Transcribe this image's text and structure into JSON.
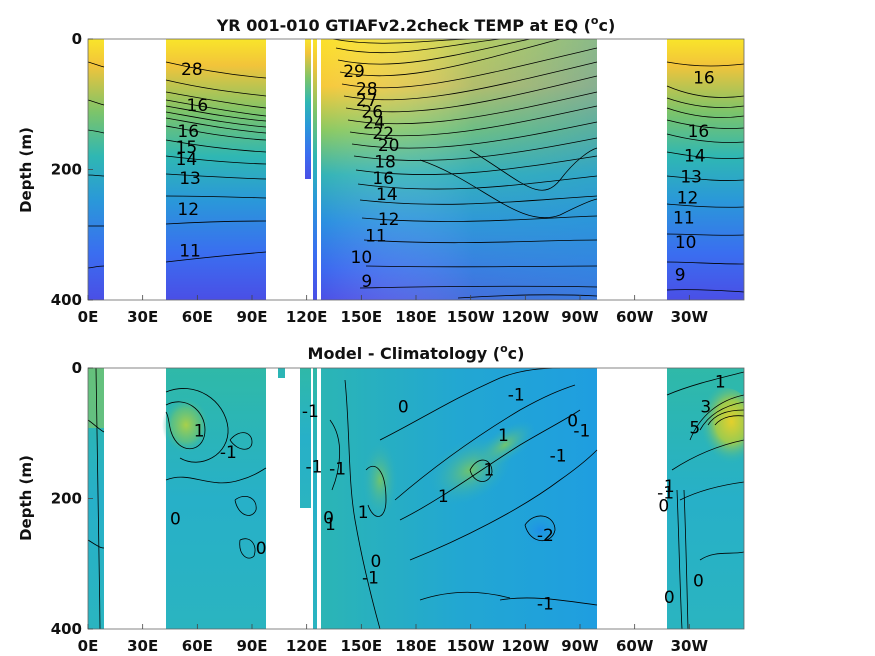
{
  "chart_data": [
    {
      "type": "heatmap",
      "title_main": "YR 001-010 GTIAFv2.2check TEMP at EQ (",
      "title_sup": "o",
      "title_end": "c)",
      "ylabel": "Depth (m)",
      "xlabel": "",
      "x_ticks": [
        "0E",
        "30E",
        "60E",
        "90E",
        "120E",
        "150E",
        "180E",
        "150W",
        "120W",
        "90W",
        "60W",
        "30W"
      ],
      "y_ticks": [
        "0",
        "200",
        "400"
      ],
      "ylim": [
        0,
        400
      ],
      "colormap": "parula",
      "crange": [
        8,
        30
      ],
      "land_gaps_lon": [
        [
          10,
          45
        ],
        [
          100,
          118
        ],
        [
          127,
          129
        ],
        [
          275,
          302
        ]
      ],
      "contour_labels": [
        {
          "text": "28",
          "lon": 57,
          "depth": 55
        },
        {
          "text": "16",
          "lon": 60,
          "depth": 110
        },
        {
          "text": "16",
          "lon": 55,
          "depth": 150
        },
        {
          "text": "15",
          "lon": 54,
          "depth": 175
        },
        {
          "text": "14",
          "lon": 54,
          "depth": 193
        },
        {
          "text": "13",
          "lon": 56,
          "depth": 222
        },
        {
          "text": "12",
          "lon": 55,
          "depth": 270
        },
        {
          "text": "11",
          "lon": 56,
          "depth": 333
        },
        {
          "text": "29",
          "lon": 146,
          "depth": 58
        },
        {
          "text": "28",
          "lon": 153,
          "depth": 85
        },
        {
          "text": "27",
          "lon": 153,
          "depth": 103
        },
        {
          "text": "26",
          "lon": 156,
          "depth": 120
        },
        {
          "text": "24",
          "lon": 157,
          "depth": 137
        },
        {
          "text": "22",
          "lon": 162,
          "depth": 153
        },
        {
          "text": "20",
          "lon": 165,
          "depth": 172
        },
        {
          "text": "18",
          "lon": 163,
          "depth": 197
        },
        {
          "text": "16",
          "lon": 162,
          "depth": 222
        },
        {
          "text": "14",
          "lon": 164,
          "depth": 247
        },
        {
          "text": "12",
          "lon": 165,
          "depth": 285
        },
        {
          "text": "11",
          "lon": 158,
          "depth": 310
        },
        {
          "text": "10",
          "lon": 150,
          "depth": 343
        },
        {
          "text": "9",
          "lon": 153,
          "depth": 380
        },
        {
          "text": "16",
          "lon": 338,
          "depth": 68
        },
        {
          "text": "16",
          "lon": 335,
          "depth": 150
        },
        {
          "text": "14",
          "lon": 333,
          "depth": 188
        },
        {
          "text": "13",
          "lon": 331,
          "depth": 220
        },
        {
          "text": "12",
          "lon": 329,
          "depth": 252
        },
        {
          "text": "11",
          "lon": 327,
          "depth": 283
        },
        {
          "text": "10",
          "lon": 328,
          "depth": 320
        },
        {
          "text": "9",
          "lon": 325,
          "depth": 370
        }
      ]
    },
    {
      "type": "heatmap",
      "title_main": "Model - Climatology (",
      "title_sup": "o",
      "title_end": "c)",
      "ylabel": "Depth (m)",
      "xlabel": "",
      "x_ticks": [
        "0E",
        "30E",
        "60E",
        "90E",
        "120E",
        "150E",
        "180E",
        "150W",
        "120W",
        "90W",
        "60W",
        "30W"
      ],
      "y_ticks": [
        "0",
        "200",
        "400"
      ],
      "ylim": [
        0,
        400
      ],
      "colormap": "parula",
      "crange": [
        -3,
        3
      ],
      "land_gaps_lon": [
        [
          10,
          45
        ],
        [
          100,
          118
        ],
        [
          127,
          129
        ],
        [
          275,
          302
        ]
      ],
      "contour_labels": [
        {
          "text": "1",
          "lon": 61,
          "depth": 105
        },
        {
          "text": "-1",
          "lon": 77,
          "depth": 138
        },
        {
          "text": "0",
          "lon": 48,
          "depth": 240
        },
        {
          "text": "0",
          "lon": 95,
          "depth": 285
        },
        {
          "text": "-1",
          "lon": 122,
          "depth": 75
        },
        {
          "text": "-1",
          "lon": 124,
          "depth": 160
        },
        {
          "text": "0",
          "lon": 132,
          "depth": 238
        },
        {
          "text": "1",
          "lon": 133,
          "depth": 248
        },
        {
          "text": "-1",
          "lon": 137,
          "depth": 163
        },
        {
          "text": "1",
          "lon": 151,
          "depth": 230
        },
        {
          "text": "0",
          "lon": 158,
          "depth": 305
        },
        {
          "text": "-1",
          "lon": 155,
          "depth": 330
        },
        {
          "text": "0",
          "lon": 173,
          "depth": 68
        },
        {
          "text": "1",
          "lon": 195,
          "depth": 205
        },
        {
          "text": "1",
          "lon": 220,
          "depth": 165
        },
        {
          "text": "1",
          "lon": 228,
          "depth": 112
        },
        {
          "text": "-1",
          "lon": 235,
          "depth": 50
        },
        {
          "text": "0",
          "lon": 266,
          "depth": 90
        },
        {
          "text": "-1",
          "lon": 271,
          "depth": 105
        },
        {
          "text": "-1",
          "lon": 258,
          "depth": 143
        },
        {
          "text": "-2",
          "lon": 251,
          "depth": 265
        },
        {
          "text": "-1",
          "lon": 251,
          "depth": 370
        },
        {
          "text": "1",
          "lon": 347,
          "depth": 30
        },
        {
          "text": "3",
          "lon": 339,
          "depth": 68
        },
        {
          "text": "5",
          "lon": 333,
          "depth": 100
        },
        {
          "text": "1",
          "lon": 319,
          "depth": 190
        },
        {
          "text": "-1",
          "lon": 317,
          "depth": 200
        },
        {
          "text": "0",
          "lon": 316,
          "depth": 220
        },
        {
          "text": "0",
          "lon": 335,
          "depth": 335
        },
        {
          "text": "0",
          "lon": 319,
          "depth": 360
        }
      ]
    }
  ]
}
